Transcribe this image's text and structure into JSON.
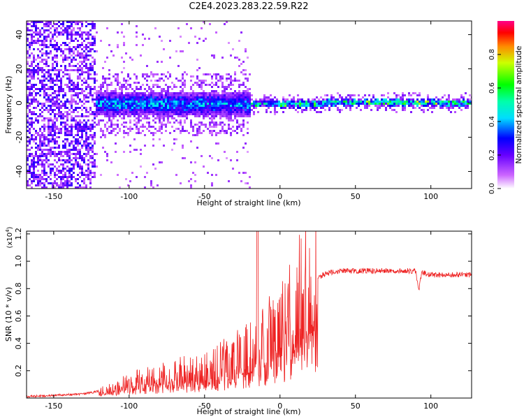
{
  "title": "C2E4.2023.283.22.59.R22",
  "colors": {
    "snr_line": "#ee2222",
    "axis": "#000000"
  },
  "chart_data": [
    {
      "type": "heatmap",
      "name": "spectrogram",
      "title": "C2E4.2023.283.22.59.R22",
      "xlabel": "Height of straight line (km)",
      "ylabel": "Frequency (Hz)",
      "xlim": [
        -168,
        127
      ],
      "ylim": [
        -50,
        48
      ],
      "xticks": [
        -150,
        -100,
        -50,
        0,
        50,
        100
      ],
      "yticks": [
        -40,
        -20,
        0,
        20,
        40
      ],
      "colorbar": {
        "label": "Normalized spectral amplitude",
        "ticks": [
          "0.0",
          "0.2",
          "0.4",
          "0.6",
          "0.8"
        ],
        "range": [
          0,
          1
        ]
      },
      "bands": [
        {
          "x": [
            -168,
            -123
          ],
          "noise": "broadband",
          "freq_range": [
            -50,
            48
          ],
          "amplitude": 0.15
        },
        {
          "x": [
            -123,
            -20
          ],
          "center_hz": 0,
          "half_width_hz": 7,
          "amplitude": 0.35
        },
        {
          "x": [
            -20,
            30
          ],
          "center_hz": 0,
          "half_width_hz": 2,
          "amplitude": 0.5
        },
        {
          "x": [
            30,
            127
          ],
          "center_hz": 1,
          "half_width_hz": 2,
          "amplitude": 0.55
        }
      ]
    },
    {
      "type": "line",
      "name": "snr",
      "xlabel": "Height of straight line (km)",
      "ylabel": "SNR (10 * v/v)",
      "y_multiplier": "(x10",
      "y_multiplier_exp": "4",
      "y_multiplier_close": ")",
      "xlim": [
        -168,
        127
      ],
      "ylim": [
        0,
        1.22
      ],
      "xticks": [
        -150,
        -100,
        -50,
        0,
        50,
        100
      ],
      "yticks": [
        "0.2",
        "0.4",
        "0.6",
        "0.8",
        "1.0",
        "1.2"
      ],
      "series": [
        {
          "name": "SNR",
          "x": [
            -168,
            -150,
            -130,
            -120,
            -110,
            -100,
            -90,
            -80,
            -70,
            -60,
            -50,
            -40,
            -30,
            -25,
            -20,
            -15,
            -10,
            -5,
            0,
            5,
            10,
            15,
            20,
            25,
            30,
            40,
            50,
            60,
            70,
            80,
            90,
            92,
            94,
            100,
            110,
            120,
            127
          ],
          "values": [
            0.01,
            0.02,
            0.03,
            0.05,
            0.08,
            0.12,
            0.14,
            0.16,
            0.18,
            0.2,
            0.22,
            0.26,
            0.3,
            0.33,
            0.36,
            0.38,
            0.42,
            0.5,
            0.52,
            0.6,
            0.7,
            0.8,
            0.84,
            0.88,
            0.91,
            0.93,
            0.93,
            0.93,
            0.93,
            0.93,
            0.93,
            0.78,
            0.92,
            0.9,
            0.9,
            0.9,
            0.9
          ]
        }
      ]
    }
  ]
}
